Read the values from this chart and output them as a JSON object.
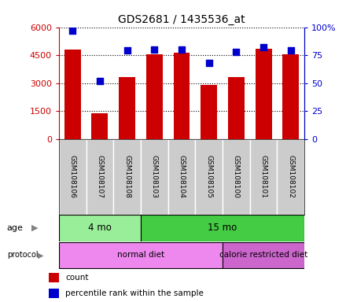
{
  "title": "GDS2681 / 1435536_at",
  "samples": [
    "GSM108106",
    "GSM108107",
    "GSM108108",
    "GSM108103",
    "GSM108104",
    "GSM108105",
    "GSM108100",
    "GSM108101",
    "GSM108102"
  ],
  "counts": [
    4800,
    1390,
    3300,
    4550,
    4620,
    2880,
    3340,
    4850,
    4530
  ],
  "percentile_ranks": [
    97,
    52,
    79,
    80,
    80,
    68,
    78,
    82,
    79
  ],
  "ylim_left": [
    0,
    6000
  ],
  "ylim_right": [
    0,
    100
  ],
  "yticks_left": [
    0,
    1500,
    3000,
    4500,
    6000
  ],
  "yticks_right": [
    0,
    25,
    50,
    75,
    100
  ],
  "ytick_labels_left": [
    "0",
    "1500",
    "3000",
    "4500",
    "6000"
  ],
  "ytick_labels_right": [
    "0",
    "25",
    "50",
    "75",
    "100%"
  ],
  "bar_color": "#cc0000",
  "dot_color": "#0000cc",
  "age_groups": [
    {
      "label": "4 mo",
      "start": 0,
      "end": 3,
      "color": "#99ee99"
    },
    {
      "label": "15 mo",
      "start": 3,
      "end": 9,
      "color": "#44cc44"
    }
  ],
  "protocol_groups": [
    {
      "label": "normal diet",
      "start": 0,
      "end": 6,
      "color": "#ee88ee"
    },
    {
      "label": "calorie restricted diet",
      "start": 6,
      "end": 9,
      "color": "#cc66cc"
    }
  ],
  "legend_items": [
    {
      "color": "#cc0000",
      "label": "count"
    },
    {
      "color": "#0000cc",
      "label": "percentile rank within the sample"
    }
  ],
  "background_color": "#ffffff",
  "plot_bg_color": "#ffffff",
  "tick_label_bg": "#cccccc"
}
